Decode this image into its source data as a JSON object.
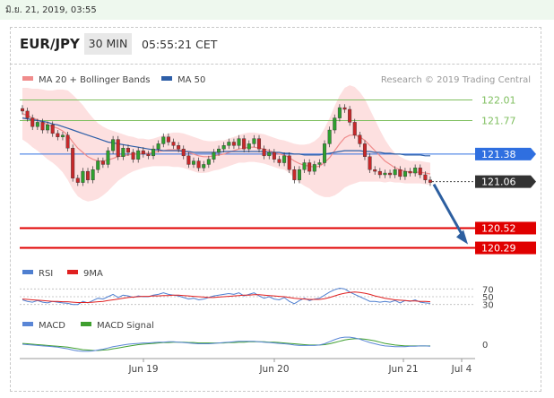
{
  "date_text": "มิ.ย. 21, 2019, 03:55",
  "header": {
    "symbol": "EUR/JPY",
    "timeframe": "30 MIN",
    "time": "05:55:21 CET"
  },
  "credit": "Research © 2019 Trading Central",
  "colors": {
    "ma20": "#f08c8c",
    "ma50": "#2e5fa8",
    "bands_fill": "#fde0e0",
    "candle_up": "#2ea02e",
    "candle_down": "#c8282a",
    "resistance": "#7fbf5f",
    "support": "#e00000",
    "pivot": "#2f6fe0",
    "arrow": "#2d5fa0",
    "macd": "#5a86d6",
    "macd_signal": "#3f9f2f",
    "rsi": "#4f7fd0",
    "rsi_ma": "#e02020"
  },
  "chart_data": [
    {
      "type": "candlestick",
      "title": "EUR/JPY 30 MIN",
      "legend": [
        {
          "name": "MA 20 + Bollinger Bands",
          "color": "#f08c8c"
        },
        {
          "name": "MA 50",
          "color": "#2e5fa8"
        }
      ],
      "ylim": [
        120.15,
        122.15
      ],
      "levels": [
        {
          "value": 122.01,
          "label": "122.01",
          "kind": "resistance"
        },
        {
          "value": 121.77,
          "label": "121.77",
          "kind": "resistance"
        },
        {
          "value": 121.38,
          "label": "121.38",
          "kind": "pivot"
        },
        {
          "value": 121.06,
          "label": "121.06",
          "kind": "last"
        },
        {
          "value": 120.52,
          "label": "120.52",
          "kind": "support"
        },
        {
          "value": 120.29,
          "label": "120.29",
          "kind": "support"
        }
      ],
      "closes": [
        121.88,
        121.8,
        121.7,
        121.75,
        121.66,
        121.72,
        121.62,
        121.58,
        121.6,
        121.45,
        121.1,
        121.05,
        121.18,
        121.08,
        121.2,
        121.3,
        121.26,
        121.42,
        121.55,
        121.35,
        121.45,
        121.4,
        121.32,
        121.42,
        121.38,
        121.36,
        121.44,
        121.5,
        121.58,
        121.52,
        121.48,
        121.44,
        121.36,
        121.26,
        121.3,
        121.22,
        121.26,
        121.32,
        121.4,
        121.44,
        121.48,
        121.52,
        121.48,
        121.56,
        121.44,
        121.5,
        121.56,
        121.44,
        121.36,
        121.4,
        121.32,
        121.28,
        121.36,
        121.2,
        121.08,
        121.2,
        121.28,
        121.18,
        121.26,
        121.28,
        121.5,
        121.66,
        121.8,
        121.92,
        121.9,
        121.75,
        121.6,
        121.5,
        121.35,
        121.2,
        121.18,
        121.14,
        121.16,
        121.14,
        121.2,
        121.12,
        121.18,
        121.16,
        121.22,
        121.14,
        121.08,
        121.05
      ],
      "ma20": [
        121.85,
        121.83,
        121.8,
        121.78,
        121.75,
        121.72,
        121.7,
        121.68,
        121.65,
        121.6,
        121.52,
        121.45,
        121.4,
        121.35,
        121.32,
        121.3,
        121.3,
        121.31,
        121.33,
        121.35,
        121.36,
        121.37,
        121.38,
        121.38,
        121.39,
        121.39,
        121.4,
        121.41,
        121.42,
        121.43,
        121.43,
        121.43,
        121.42,
        121.4,
        121.38,
        121.36,
        121.35,
        121.35,
        121.36,
        121.37,
        121.38,
        121.4,
        121.42,
        121.44,
        121.45,
        121.46,
        121.46,
        121.45,
        121.44,
        121.42,
        121.4,
        121.38,
        121.37,
        121.34,
        121.3,
        121.27,
        121.25,
        121.24,
        121.23,
        121.24,
        121.28,
        121.34,
        121.42,
        121.5,
        121.57,
        121.6,
        121.6,
        121.58,
        121.54,
        121.48,
        121.42,
        121.36,
        121.3,
        121.26,
        121.22,
        121.2,
        121.18,
        121.17,
        121.17,
        121.17,
        121.16,
        121.15
      ],
      "ma50": [
        121.8,
        121.79,
        121.78,
        121.77,
        121.76,
        121.75,
        121.73,
        121.72,
        121.7,
        121.68,
        121.66,
        121.64,
        121.62,
        121.6,
        121.58,
        121.56,
        121.54,
        121.52,
        121.51,
        121.5,
        121.49,
        121.48,
        121.47,
        121.46,
        121.45,
        121.44,
        121.43,
        121.43,
        121.42,
        121.42,
        121.42,
        121.42,
        121.41,
        121.41,
        121.4,
        121.4,
        121.4,
        121.4,
        121.4,
        121.4,
        121.41,
        121.41,
        121.41,
        121.41,
        121.41,
        121.41,
        121.41,
        121.41,
        121.41,
        121.4,
        121.4,
        121.4,
        121.39,
        121.39,
        121.38,
        121.38,
        121.37,
        121.37,
        121.37,
        121.37,
        121.38,
        121.39,
        121.4,
        121.41,
        121.42,
        121.42,
        121.42,
        121.42,
        121.41,
        121.41,
        121.4,
        121.4,
        121.39,
        121.39,
        121.38,
        121.38,
        121.37,
        121.37,
        121.37,
        121.37,
        121.36,
        121.36
      ],
      "band_width": [
        0.3,
        0.32,
        0.34,
        0.36,
        0.38,
        0.4,
        0.42,
        0.45,
        0.48,
        0.52,
        0.55,
        0.56,
        0.55,
        0.52,
        0.48,
        0.44,
        0.4,
        0.36,
        0.32,
        0.28,
        0.25,
        0.22,
        0.2,
        0.18,
        0.17,
        0.16,
        0.16,
        0.17,
        0.18,
        0.19,
        0.2,
        0.2,
        0.2,
        0.2,
        0.2,
        0.2,
        0.19,
        0.18,
        0.17,
        0.17,
        0.16,
        0.16,
        0.16,
        0.16,
        0.17,
        0.17,
        0.17,
        0.17,
        0.17,
        0.17,
        0.17,
        0.17,
        0.17,
        0.18,
        0.2,
        0.22,
        0.24,
        0.26,
        0.3,
        0.34,
        0.4,
        0.46,
        0.52,
        0.56,
        0.58,
        0.58,
        0.56,
        0.52,
        0.48,
        0.42,
        0.36,
        0.3,
        0.25,
        0.2,
        0.17,
        0.15,
        0.14,
        0.13,
        0.13,
        0.13,
        0.13,
        0.13
      ],
      "x_tick_labels": [
        "Jun 19",
        "Jun 20",
        "Jun 21",
        "Jul 4"
      ],
      "annotation": "projected decline toward 120.29"
    },
    {
      "type": "line",
      "title": "RSI",
      "legend": [
        {
          "name": "RSI",
          "color": "#4f7fd0"
        },
        {
          "name": "9MA",
          "color": "#e02020"
        }
      ],
      "ylim": [
        20,
        80
      ],
      "y_tick_labels": [
        "70",
        "50",
        "30"
      ],
      "y_ticks": [
        70,
        50,
        30
      ],
      "series": [
        {
          "name": "RSI",
          "values": [
            42,
            38,
            36,
            40,
            36,
            34,
            38,
            36,
            34,
            33,
            30,
            30,
            38,
            34,
            40,
            46,
            44,
            50,
            56,
            48,
            54,
            52,
            48,
            52,
            50,
            50,
            54,
            56,
            60,
            56,
            54,
            52,
            48,
            44,
            46,
            42,
            44,
            48,
            52,
            54,
            56,
            58,
            56,
            60,
            52,
            56,
            60,
            52,
            46,
            50,
            44,
            42,
            48,
            38,
            32,
            40,
            46,
            40,
            44,
            46,
            54,
            62,
            68,
            72,
            70,
            62,
            56,
            50,
            44,
            38,
            38,
            36,
            38,
            36,
            40,
            34,
            40,
            38,
            42,
            36,
            34,
            33
          ]
        },
        {
          "name": "9MA",
          "values": [
            44,
            43,
            42,
            41,
            40,
            39,
            38,
            38,
            37,
            37,
            36,
            35,
            35,
            35,
            36,
            37,
            38,
            40,
            42,
            44,
            46,
            48,
            49,
            50,
            51,
            51,
            52,
            52,
            53,
            53,
            54,
            54,
            53,
            52,
            51,
            50,
            49,
            48,
            48,
            49,
            50,
            51,
            52,
            53,
            54,
            54,
            55,
            55,
            54,
            53,
            52,
            51,
            50,
            48,
            46,
            45,
            44,
            43,
            43,
            43,
            45,
            48,
            52,
            56,
            59,
            61,
            62,
            61,
            59,
            56,
            52,
            49,
            46,
            44,
            42,
            41,
            40,
            39,
            39,
            38,
            38,
            37
          ]
        }
      ]
    },
    {
      "type": "line",
      "title": "MACD",
      "legend": [
        {
          "name": "MACD",
          "color": "#5a86d6"
        },
        {
          "name": "MACD Signal",
          "color": "#3f9f2f"
        }
      ],
      "ylim": [
        -0.3,
        0.3
      ],
      "y_tick_labels": [
        "0"
      ],
      "y_ticks": [
        0
      ],
      "series": [
        {
          "name": "MACD",
          "values": [
            0,
            -0.01,
            -0.02,
            -0.03,
            -0.04,
            -0.05,
            -0.06,
            -0.07,
            -0.09,
            -0.11,
            -0.14,
            -0.16,
            -0.17,
            -0.17,
            -0.16,
            -0.14,
            -0.12,
            -0.09,
            -0.06,
            -0.04,
            -0.02,
            0,
            0.01,
            0.02,
            0.03,
            0.03,
            0.04,
            0.05,
            0.05,
            0.06,
            0.06,
            0.05,
            0.04,
            0.03,
            0.02,
            0.01,
            0.01,
            0.01,
            0.02,
            0.03,
            0.04,
            0.05,
            0.06,
            0.07,
            0.07,
            0.07,
            0.07,
            0.06,
            0.05,
            0.04,
            0.03,
            0.02,
            0.01,
            0,
            -0.02,
            -0.03,
            -0.03,
            -0.03,
            -0.03,
            -0.02,
            0.01,
            0.06,
            0.11,
            0.15,
            0.17,
            0.17,
            0.15,
            0.12,
            0.08,
            0.04,
            0.01,
            -0.02,
            -0.04,
            -0.05,
            -0.06,
            -0.06,
            -0.06,
            -0.05,
            -0.05,
            -0.04,
            -0.04,
            -0.05
          ]
        },
        {
          "name": "MACD Signal",
          "values": [
            0.02,
            0.01,
            0,
            -0.01,
            -0.02,
            -0.03,
            -0.04,
            -0.05,
            -0.06,
            -0.07,
            -0.09,
            -0.11,
            -0.13,
            -0.14,
            -0.15,
            -0.15,
            -0.14,
            -0.13,
            -0.11,
            -0.09,
            -0.07,
            -0.05,
            -0.03,
            -0.01,
            0,
            0.01,
            0.02,
            0.03,
            0.04,
            0.04,
            0.05,
            0.05,
            0.05,
            0.04,
            0.04,
            0.03,
            0.03,
            0.03,
            0.03,
            0.03,
            0.03,
            0.04,
            0.04,
            0.05,
            0.05,
            0.06,
            0.06,
            0.06,
            0.06,
            0.05,
            0.05,
            0.04,
            0.03,
            0.02,
            0.01,
            0,
            -0.01,
            -0.02,
            -0.02,
            -0.02,
            -0.01,
            0.01,
            0.04,
            0.07,
            0.1,
            0.12,
            0.13,
            0.13,
            0.12,
            0.1,
            0.08,
            0.05,
            0.02,
            0,
            -0.02,
            -0.03,
            -0.04,
            -0.04,
            -0.04,
            -0.04,
            -0.04,
            -0.04
          ]
        }
      ]
    }
  ]
}
